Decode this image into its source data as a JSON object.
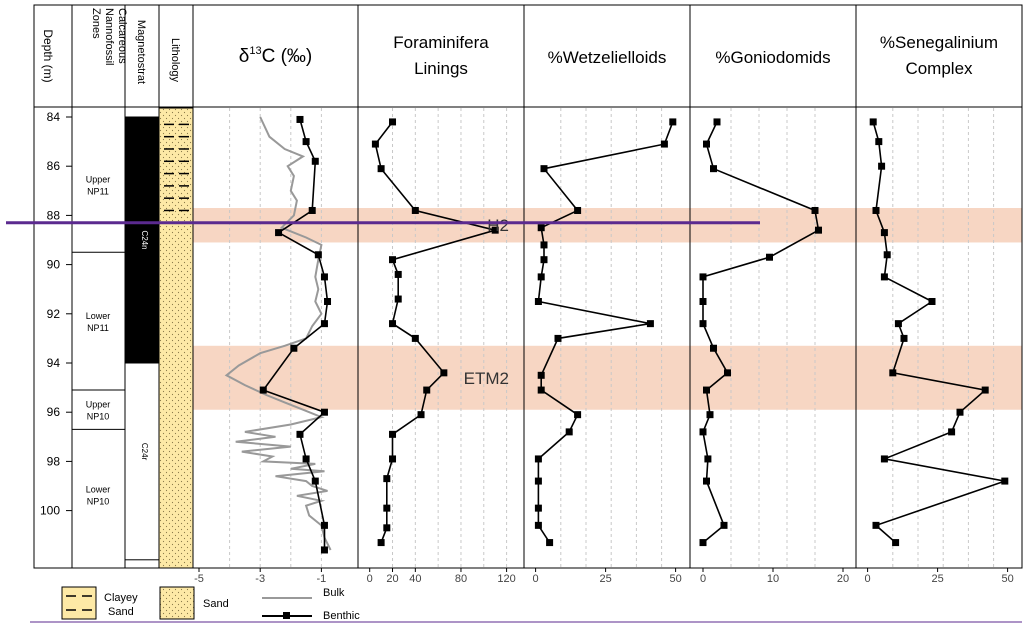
{
  "columns": {
    "depth_header": "Depth (m)",
    "zones_header": "Calcareous Nannofossil Zones",
    "magnetostrat_header": "Magnetostrat",
    "lithology_header": "Lithology"
  },
  "depth_ticks": [
    "84",
    "86",
    "88",
    "90",
    "92",
    "94",
    "96",
    "98",
    "100"
  ],
  "nannofossil_zones": [
    {
      "line1": "Upper",
      "line2": "NP11",
      "top": 84,
      "bottom": 89.5
    },
    {
      "line1": "Lower",
      "line2": "NP11",
      "top": 89.5,
      "bottom": 95.1
    },
    {
      "line1": "Upper",
      "line2": "NP10",
      "top": 95.1,
      "bottom": 96.7
    },
    {
      "line1": "Lower",
      "line2": "NP10",
      "top": 96.7,
      "bottom": 102
    }
  ],
  "magnetostrat": [
    {
      "label": "C24n",
      "top": 84,
      "bottom": 94,
      "color": "#000000"
    },
    {
      "label": "C24r",
      "top": 94,
      "bottom": 102,
      "color": "#ffffff"
    }
  ],
  "lithology": [
    {
      "type": "clayey_sand",
      "top": 84,
      "bottom": 88.7
    },
    {
      "type": "sand",
      "top": 88.7,
      "bottom": 102
    }
  ],
  "events": [
    {
      "label": "H2",
      "top": 87.7,
      "bottom": 89.1,
      "color": "#f7d6c3",
      "label_panel": 2
    },
    {
      "label": "ETM2",
      "top": 93.3,
      "bottom": 95.9,
      "color": "#f7d6c3",
      "label_panel": 2
    }
  ],
  "marker_line": {
    "depth": 88.5,
    "color": "#5b2a8f"
  },
  "legend": {
    "clayey_sand_line1": "Clayey",
    "clayey_sand_line2": "Sand",
    "sand": "Sand",
    "bulk": "Bulk",
    "benthic": "Benthic"
  },
  "chart_data": {
    "type": "line",
    "y_axis": {
      "label": "Depth (m)",
      "range": [
        83.6,
        102.3
      ],
      "inverted": true,
      "ticks": [
        84,
        86,
        88,
        90,
        92,
        94,
        96,
        98,
        100
      ]
    },
    "panels": [
      {
        "title_main": "δ",
        "title_sup": "13",
        "title_rest": "C (‰)",
        "xlim": [
          -5,
          0
        ],
        "xticks": [
          "-5",
          "-3",
          "-1"
        ],
        "xtick_values": [
          -5,
          -3,
          -1
        ],
        "grid": [
          -4,
          -3,
          -2,
          -1
        ],
        "series": [
          {
            "name": "Bulk",
            "style": "gray-line",
            "points": [
              [
                -3.0,
                84.0
              ],
              [
                -2.7,
                84.8
              ],
              [
                -2.2,
                85.3
              ],
              [
                -1.6,
                85.6
              ],
              [
                -2.1,
                86.0
              ],
              [
                -1.9,
                86.4
              ],
              [
                -2.0,
                87.0
              ],
              [
                -1.8,
                87.4
              ],
              [
                -1.9,
                88.0
              ],
              [
                -2.3,
                88.5
              ],
              [
                -1.5,
                88.9
              ],
              [
                -1.0,
                89.2
              ],
              [
                -1.1,
                89.8
              ],
              [
                -1.2,
                90.5
              ],
              [
                -1.1,
                91.0
              ],
              [
                -1.2,
                91.5
              ],
              [
                -1.0,
                92.0
              ],
              [
                -1.3,
                92.5
              ],
              [
                -1.5,
                93.0
              ],
              [
                -2.2,
                93.3
              ],
              [
                -3.0,
                93.6
              ],
              [
                -3.7,
                94.1
              ],
              [
                -4.1,
                94.5
              ],
              [
                -3.5,
                94.9
              ],
              [
                -2.8,
                95.3
              ],
              [
                -2.2,
                95.6
              ],
              [
                -1.6,
                95.9
              ],
              [
                -1.0,
                96.2
              ],
              [
                -2.0,
                96.5
              ],
              [
                -3.5,
                96.8
              ],
              [
                -2.5,
                97.0
              ],
              [
                -3.8,
                97.2
              ],
              [
                -2.0,
                97.4
              ],
              [
                -3.6,
                97.6
              ],
              [
                -2.6,
                97.8
              ],
              [
                -2.9,
                98.0
              ],
              [
                -1.2,
                98.1
              ],
              [
                -2.0,
                98.3
              ],
              [
                -0.9,
                98.4
              ],
              [
                -2.5,
                98.6
              ],
              [
                -1.5,
                98.8
              ],
              [
                -1.3,
                99.0
              ],
              [
                -0.8,
                99.2
              ],
              [
                -1.8,
                99.4
              ],
              [
                -1.0,
                99.6
              ],
              [
                -1.5,
                99.8
              ],
              [
                -1.4,
                100.2
              ],
              [
                -1.0,
                100.6
              ],
              [
                -0.9,
                101.1
              ],
              [
                -0.7,
                101.6
              ]
            ]
          },
          {
            "name": "Benthic",
            "style": "black-square",
            "points": [
              [
                -1.7,
                84.1
              ],
              [
                -1.5,
                85.0
              ],
              [
                -1.2,
                85.8
              ],
              [
                -1.3,
                87.8
              ],
              [
                -2.4,
                88.7
              ],
              [
                -1.1,
                89.6
              ],
              [
                -0.9,
                90.5
              ],
              [
                -0.8,
                91.5
              ],
              [
                -0.9,
                92.4
              ],
              [
                -1.9,
                93.4
              ],
              [
                -2.9,
                95.1
              ],
              [
                -0.9,
                96.0
              ],
              [
                -1.7,
                96.9
              ],
              [
                -1.5,
                97.9
              ],
              [
                -1.2,
                98.8
              ],
              [
                -0.9,
                100.6
              ],
              [
                -0.9,
                101.6
              ]
            ]
          }
        ]
      },
      {
        "title_lines": [
          "Foraminifera",
          "Linings"
        ],
        "xlim": [
          -5,
          130
        ],
        "xticks": [
          "0",
          "20",
          "40",
          "80",
          "120"
        ],
        "xtick_values": [
          0,
          20,
          40,
          80,
          120
        ],
        "grid": [
          20,
          40,
          60,
          80,
          100,
          120
        ],
        "series": [
          {
            "name": "Benthic",
            "style": "black-square",
            "points": [
              [
                20,
                84.2
              ],
              [
                5,
                85.1
              ],
              [
                10,
                86.1
              ],
              [
                40,
                87.8
              ],
              [
                110,
                88.6
              ],
              [
                20,
                89.8
              ],
              [
                25,
                90.4
              ],
              [
                25,
                91.4
              ],
              [
                20,
                92.4
              ],
              [
                40,
                93.0
              ],
              [
                65,
                94.4
              ],
              [
                50,
                95.1
              ],
              [
                45,
                96.1
              ],
              [
                20,
                96.9
              ],
              [
                20,
                97.9
              ],
              [
                15,
                98.7
              ],
              [
                15,
                99.9
              ],
              [
                15,
                100.7
              ],
              [
                10,
                101.3
              ]
            ]
          }
        ]
      },
      {
        "title_lines": [
          "%Wetzelielloids"
        ],
        "xlim": [
          -2,
          53
        ],
        "xticks": [
          "0",
          "25",
          "50"
        ],
        "xtick_values": [
          0,
          25,
          50
        ],
        "grid": [
          9,
          18,
          27,
          36,
          45
        ],
        "series": [
          {
            "name": "Benthic",
            "style": "black-square",
            "points": [
              [
                49,
                84.2
              ],
              [
                46,
                85.1
              ],
              [
                3,
                86.1
              ],
              [
                15,
                87.8
              ],
              [
                2,
                88.5
              ],
              [
                3,
                89.2
              ],
              [
                3,
                89.8
              ],
              [
                2,
                90.5
              ],
              [
                1,
                91.5
              ],
              [
                41,
                92.4
              ],
              [
                8,
                93.0
              ],
              [
                2,
                94.5
              ],
              [
                2,
                95.1
              ],
              [
                15,
                96.1
              ],
              [
                12,
                96.8
              ],
              [
                1,
                97.9
              ],
              [
                1,
                98.8
              ],
              [
                1,
                99.9
              ],
              [
                1,
                100.6
              ],
              [
                5,
                101.3
              ]
            ]
          }
        ]
      },
      {
        "title_lines": [
          "%Goniodomids"
        ],
        "xlim": [
          -1,
          21
        ],
        "xticks": [
          "0",
          "10",
          "20"
        ],
        "xtick_values": [
          0,
          10,
          20
        ],
        "grid": [
          4,
          8,
          12,
          16
        ],
        "series": [
          {
            "name": "Benthic",
            "style": "black-square",
            "points": [
              [
                2,
                84.2
              ],
              [
                0.5,
                85.1
              ],
              [
                1.5,
                86.1
              ],
              [
                16,
                87.8
              ],
              [
                16.5,
                88.6
              ],
              [
                9.5,
                89.7
              ],
              [
                0,
                90.5
              ],
              [
                0,
                91.5
              ],
              [
                0,
                92.4
              ],
              [
                1.5,
                93.4
              ],
              [
                3.5,
                94.4
              ],
              [
                0.5,
                95.1
              ],
              [
                1,
                96.1
              ],
              [
                0,
                96.8
              ],
              [
                0.7,
                97.9
              ],
              [
                0.5,
                98.8
              ],
              [
                3,
                100.6
              ],
              [
                0,
                101.3
              ]
            ]
          }
        ]
      },
      {
        "title_lines": [
          "%Senegalinium",
          "Complex"
        ],
        "xlim": [
          -2,
          53
        ],
        "xticks": [
          "0",
          "25",
          "50"
        ],
        "xtick_values": [
          0,
          25,
          50
        ],
        "grid": [
          9,
          18,
          27,
          36,
          45
        ],
        "series": [
          {
            "name": "Benthic",
            "style": "black-square",
            "points": [
              [
                2,
                84.2
              ],
              [
                4,
                85.0
              ],
              [
                5,
                86.0
              ],
              [
                3,
                87.8
              ],
              [
                6,
                88.7
              ],
              [
                7,
                89.6
              ],
              [
                6,
                90.5
              ],
              [
                23,
                91.5
              ],
              [
                11,
                92.4
              ],
              [
                13,
                93.0
              ],
              [
                9,
                94.4
              ],
              [
                42,
                95.1
              ],
              [
                33,
                96.0
              ],
              [
                30,
                96.8
              ],
              [
                6,
                97.9
              ],
              [
                49,
                98.8
              ],
              [
                3,
                100.6
              ],
              [
                10,
                101.3
              ]
            ]
          }
        ]
      }
    ]
  }
}
